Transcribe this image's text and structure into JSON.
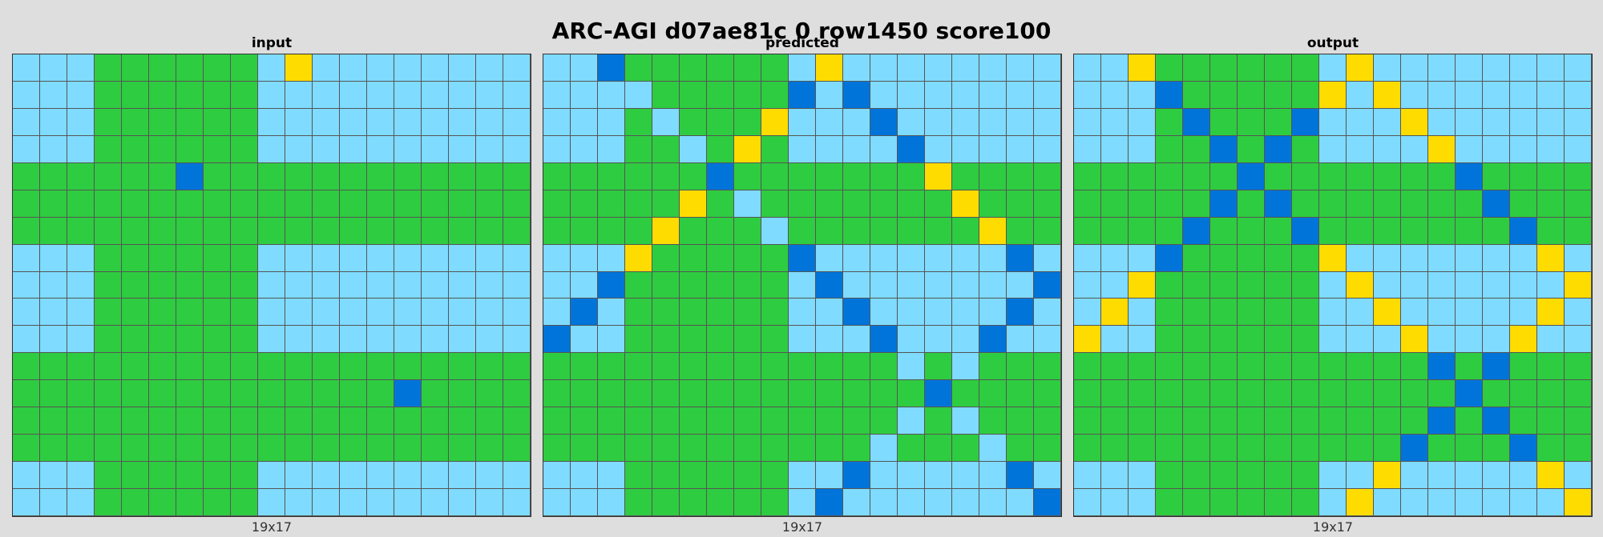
{
  "title": "ARC-AGI d07ae81c 0 row1450 score100",
  "palette": {
    "L": "#7fdbff",
    "G": "#2ecc40",
    "B": "#0074d9",
    "Y": "#ffdc00"
  },
  "panels": [
    {
      "label": "input",
      "footer": "19x17",
      "rows": [
        "LLLGGGGGGLYLLLLLLLL",
        "LLLGGGGGGLLLLLLLLLL",
        "LLLGGGGGGLLLLLLLLLL",
        "LLLGGGGGGLLLLLLLLLL",
        "GGGGGGBGGGGGGGGGGGG",
        "GGGGGGGGGGGGGGGGGGG",
        "GGGGGGGGGGGGGGGGGGG",
        "LLLGGGGGGLLLLLLLLLL",
        "LLLGGGGGGLLLLLLLLLL",
        "LLLGGGGGGLLLLLLLLLL",
        "LLLGGGGGGLLLLLLLLLL",
        "GGGGGGGGGGGGGGGGGGG",
        "GGGGGGGGGGGGGGBGGGG",
        "GGGGGGGGGGGGGGGGGGG",
        "GGGGGGGGGGGGGGGGGGG",
        "LLLGGGGGGLLLLLLLLLL",
        "LLLGGGGGGLLLLLLLLLL"
      ]
    },
    {
      "label": "predicted",
      "footer": "19x17",
      "rows": [
        "LLBGGGGGGLYLLLLLLLL",
        "LLLLGGGGGBLBLLLLLLL",
        "LLLGLGGGYLLLBLLLLLL",
        "LLLGGLGYGLLLLBLLLLL",
        "GGGGGGBGGGGGGGYGGGG",
        "GGGGGYGLGGGGGGGYGGG",
        "GGGGYGGGLGGGGGGGYGG",
        "LLLYGGGGGBLLLLLLLBL",
        "LLBGGGGGGLBLLLLLLLB",
        "LBLGGGGGGLLBLLLLLBL",
        "BLLGGGGGGLLLBLLLBLL",
        "GGGGGGGGGGGGGLGLGGG",
        "GGGGGGGGGGGGGGBGGGG",
        "GGGGGGGGGGGGGLGLGGG",
        "GGGGGGGGGGGGLGGGLGG",
        "LLLGGGGGGLLBLLLLLBL",
        "LLLGGGGGGLBLLLLLLLB"
      ]
    },
    {
      "label": "output",
      "footer": "19x17",
      "rows": [
        "LLYGGGGGGLYLLLLLLLL",
        "LLLBGGGGGYLYLLLLLLL",
        "LLLGBGGGBLLLYLLLLLL",
        "LLLGGBGBGLLLLYLLLLL",
        "GGGGGGBGGGGGGGBGGGG",
        "GGGGGBGBGGGGGGGBGGG",
        "GGGGBGGGBGGGGGGGBGG",
        "LLLBGGGGGYLLLLLLLYL",
        "LLYGGGGGGLYLLLLLLLY",
        "LYLGGGGGGLLYLLLLLYL",
        "YLLGGGGGGLLLYLLLYLL",
        "GGGGGGGGGGGGGBGBGGG",
        "GGGGGGGGGGGGGGBGGGG",
        "GGGGGGGGGGGGGBGBGGG",
        "GGGGGGGGGGGGBGGGBGG",
        "LLLGGGGGGLLYLLLLLYL",
        "LLLGGGGGGLYLLLLLLLY"
      ]
    }
  ]
}
